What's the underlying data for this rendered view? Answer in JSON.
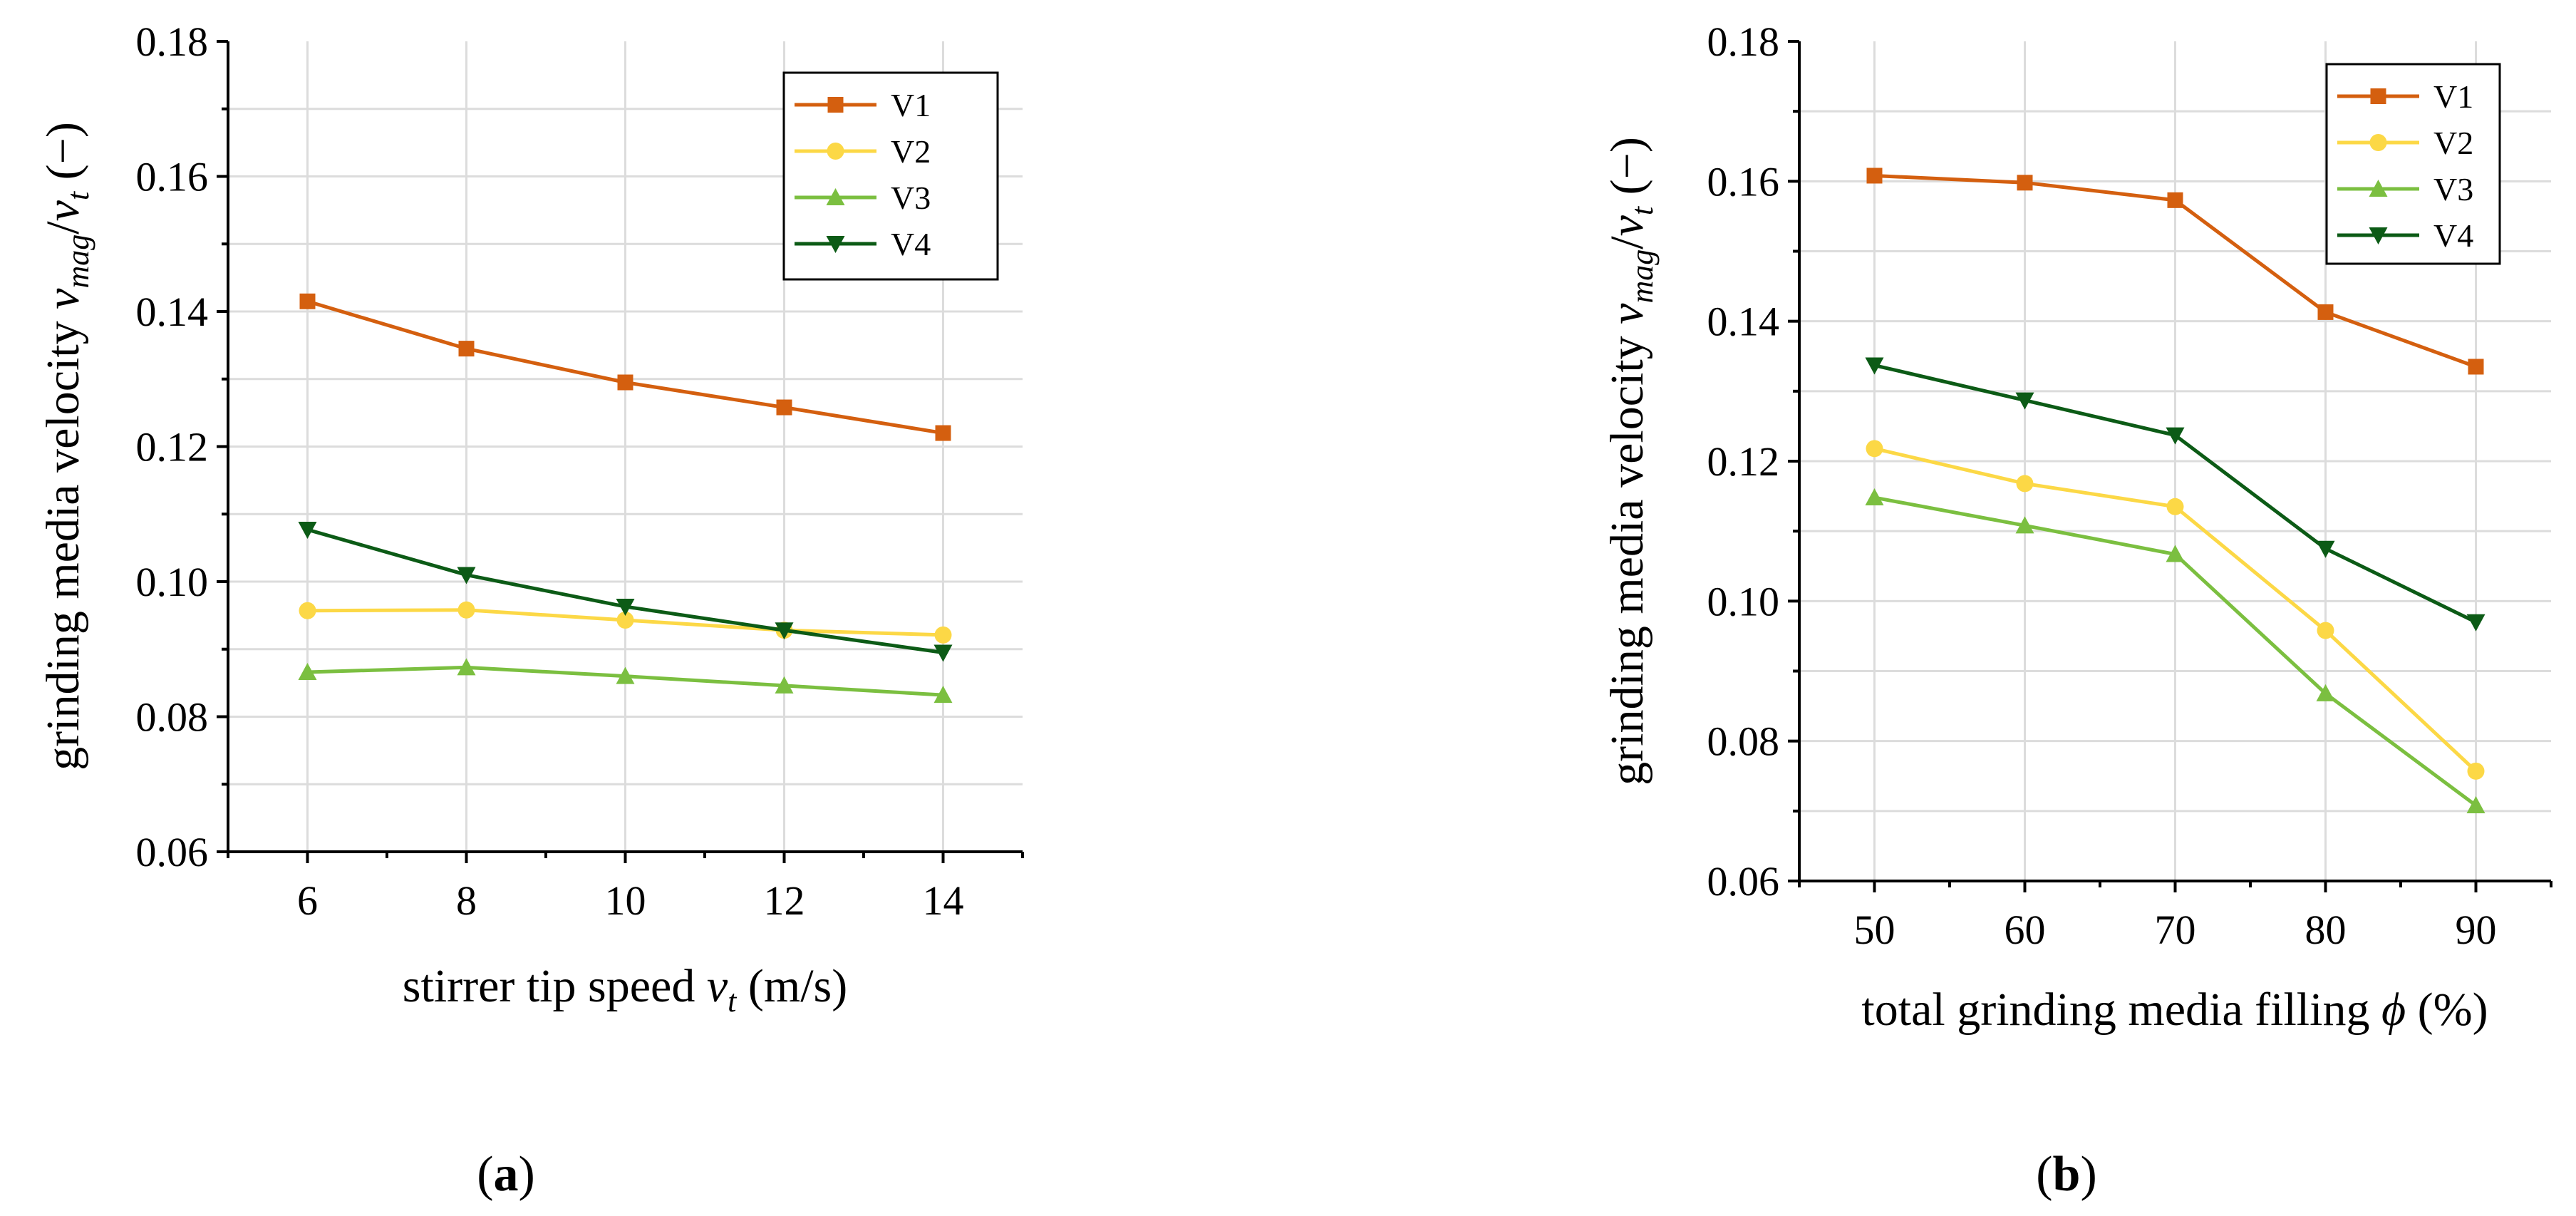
{
  "chart_data": [
    {
      "type": "line",
      "panel_label": "a",
      "xlabel_main": "stirrer tip speed ",
      "xlabel_var": "v",
      "xlabel_sub": "t",
      "xlabel_unit": " (m/s)",
      "ylabel_main": "grinding media velocity ",
      "ylabel_var1": "v",
      "ylabel_sub1": "mag",
      "ylabel_slash": "/",
      "ylabel_var2": "v",
      "ylabel_sub2": "t",
      "ylabel_unit": " (−)",
      "x": [
        6,
        8,
        10,
        12,
        14
      ],
      "xticks": [
        "6",
        "8",
        "10",
        "12",
        "14"
      ],
      "xlim": [
        5,
        15
      ],
      "ylim": [
        0.06,
        0.18
      ],
      "yticks": [
        "0.06",
        "0.08",
        "0.10",
        "0.12",
        "0.14",
        "0.16",
        "0.18"
      ],
      "grid": true,
      "legend_position": "top-right",
      "series": [
        {
          "name": "V1",
          "color": "#d45f0f",
          "marker": "square",
          "values": [
            0.1415,
            0.1345,
            0.1295,
            0.1258,
            0.122
          ]
        },
        {
          "name": "V2",
          "color": "#fcd846",
          "marker": "circle",
          "values": [
            0.0957,
            0.0958,
            0.0943,
            0.0928,
            0.0921
          ]
        },
        {
          "name": "V3",
          "color": "#7bbf40",
          "marker": "triangle-up",
          "values": [
            0.0866,
            0.0873,
            0.086,
            0.0846,
            0.0832
          ]
        },
        {
          "name": "V4",
          "color": "#0c5b16",
          "marker": "triangle-down",
          "values": [
            0.1077,
            0.101,
            0.0963,
            0.0928,
            0.0895
          ]
        }
      ]
    },
    {
      "type": "line",
      "panel_label": "b",
      "xlabel_main": "total grinding media filling ",
      "xlabel_var": "ϕ",
      "xlabel_sub": "",
      "xlabel_unit": " (%)",
      "ylabel_main": "grinding media velocity ",
      "ylabel_var1": "v",
      "ylabel_sub1": "mag",
      "ylabel_slash": "/",
      "ylabel_var2": "v",
      "ylabel_sub2": "t",
      "ylabel_unit": " (−)",
      "x": [
        50,
        60,
        70,
        80,
        90
      ],
      "xticks": [
        "50",
        "60",
        "70",
        "80",
        "90"
      ],
      "xlim": [
        45,
        95
      ],
      "ylim": [
        0.06,
        0.18
      ],
      "yticks": [
        "0.06",
        "0.08",
        "0.10",
        "0.12",
        "0.14",
        "0.16",
        "0.18"
      ],
      "grid": true,
      "legend_position": "top-right",
      "series": [
        {
          "name": "V1",
          "color": "#d45f0f",
          "marker": "square",
          "values": [
            0.1608,
            0.1598,
            0.1573,
            0.1413,
            0.1335
          ]
        },
        {
          "name": "V2",
          "color": "#fcd846",
          "marker": "circle",
          "values": [
            0.1218,
            0.1168,
            0.1135,
            0.0958,
            0.0757
          ]
        },
        {
          "name": "V3",
          "color": "#7bbf40",
          "marker": "triangle-up",
          "values": [
            0.1148,
            0.1108,
            0.1067,
            0.0868,
            0.0708
          ]
        },
        {
          "name": "V4",
          "color": "#0c5b16",
          "marker": "triangle-down",
          "values": [
            0.1337,
            0.1287,
            0.1237,
            0.1075,
            0.097
          ]
        }
      ]
    }
  ]
}
